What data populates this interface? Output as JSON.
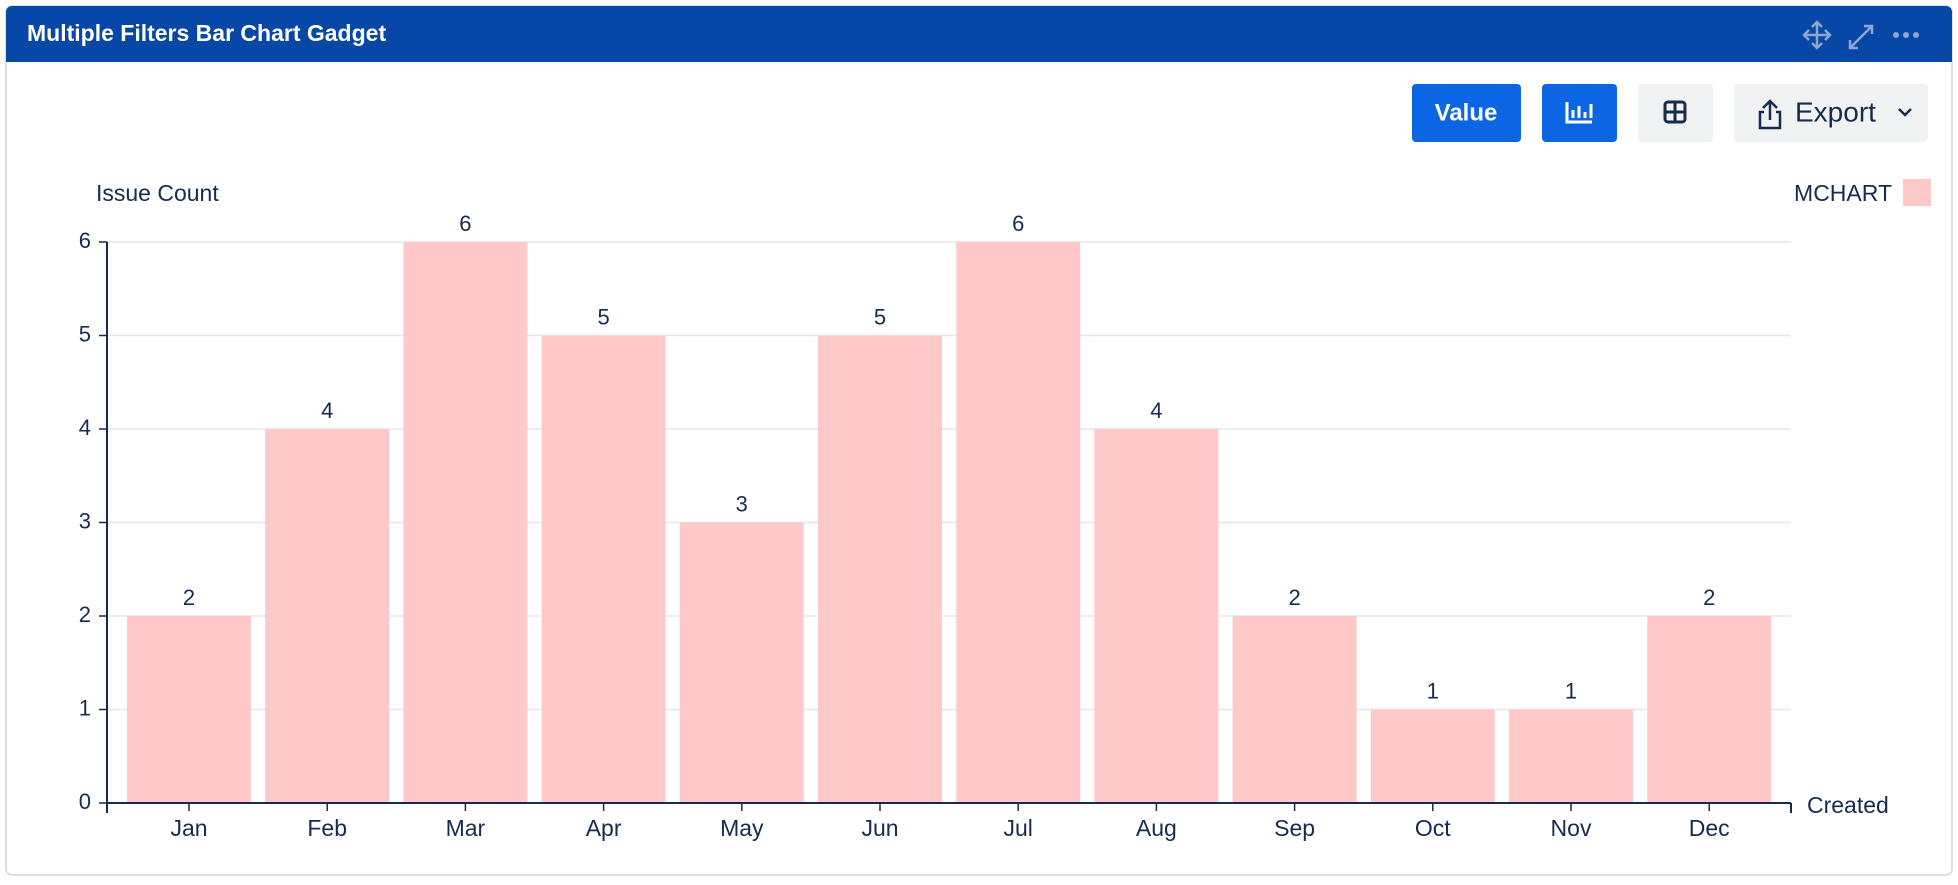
{
  "header": {
    "title": "Multiple Filters Bar Chart Gadget"
  },
  "toolbar": {
    "value_button": "Value",
    "export_button": "Export"
  },
  "chart_data": {
    "type": "bar",
    "y_label": "Issue Count",
    "x_label": "Created",
    "categories": [
      "Jan",
      "Feb",
      "Mar",
      "Apr",
      "May",
      "Jun",
      "Jul",
      "Aug",
      "Sep",
      "Oct",
      "Nov",
      "Dec"
    ],
    "series": [
      {
        "name": "MCHART",
        "color": "#ffc9c9",
        "values": [
          2,
          4,
          6,
          5,
          3,
          5,
          6,
          4,
          2,
          1,
          1,
          2
        ]
      }
    ],
    "ylim": [
      0,
      6
    ],
    "yticks": [
      0,
      1,
      2,
      3,
      4,
      5,
      6
    ],
    "grid": true,
    "legend": "top-right",
    "data_labels": true
  }
}
